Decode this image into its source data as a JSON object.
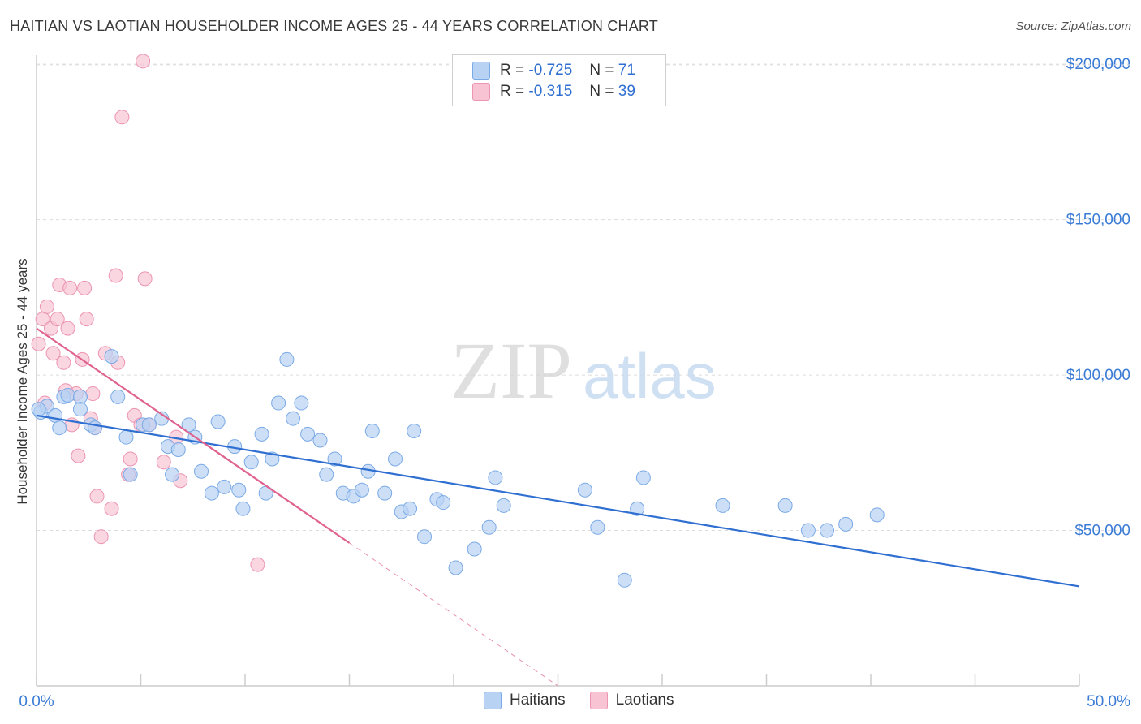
{
  "header": {
    "title": "HAITIAN VS LAOTIAN HOUSEHOLDER INCOME AGES 25 - 44 YEARS CORRELATION CHART",
    "source": "Source: ZipAtlas.com"
  },
  "legend_top": {
    "rows": [
      {
        "r_label": "R =",
        "r_value": "-0.725",
        "n_label": "N =",
        "n_value": "71"
      },
      {
        "r_label": "R =",
        "r_value": "-0.315",
        "n_label": "N =",
        "n_value": "39"
      }
    ]
  },
  "legend_bottom": {
    "haitians": "Haitians",
    "laotians": "Laotians"
  },
  "colors": {
    "haitians_fill": "#b8d2f3",
    "haitians_stroke": "#7aaae6",
    "haitians_line": "#2f6fd1",
    "laotians_fill": "#f8c4d4",
    "laotians_stroke": "#ec94b2",
    "laotians_line": "#e0628f",
    "axis_label": "#3a7bd5"
  },
  "watermark": {
    "zip": "ZIP",
    "atlas": "atlas"
  },
  "chart_data": {
    "type": "scatter",
    "title": "HAITIAN VS LAOTIAN HOUSEHOLDER INCOME AGES 25 - 44 YEARS CORRELATION CHART",
    "xlabel": "",
    "ylabel": "Householder Income Ages 25 - 44 years",
    "xlim": [
      0,
      50
    ],
    "ylim": [
      0,
      205000
    ],
    "x_tick_labels": [
      "0.0%",
      "50.0%"
    ],
    "y_ticks": [
      50000,
      100000,
      150000,
      200000
    ],
    "y_tick_labels": [
      "$50,000",
      "$100,000",
      "$150,000",
      "$200,000"
    ],
    "grid": true,
    "legend_position": "top-center",
    "series": [
      {
        "name": "Haitians",
        "r": -0.725,
        "n": 71,
        "trend": {
          "x0": 0,
          "y0": 87000,
          "x1": 50,
          "y1": 32000
        },
        "points": [
          [
            0.2,
            88000
          ],
          [
            0.5,
            90000
          ],
          [
            0.9,
            87000
          ],
          [
            1.1,
            83000
          ],
          [
            1.3,
            93000
          ],
          [
            1.5,
            93500
          ],
          [
            2.1,
            93000
          ],
          [
            2.1,
            89000
          ],
          [
            2.6,
            84000
          ],
          [
            2.8,
            83000
          ],
          [
            3.6,
            106000
          ],
          [
            3.9,
            93000
          ],
          [
            4.3,
            80000
          ],
          [
            4.5,
            68000
          ],
          [
            5.1,
            84000
          ],
          [
            5.4,
            84000
          ],
          [
            6.0,
            86000
          ],
          [
            6.3,
            77000
          ],
          [
            6.5,
            68000
          ],
          [
            6.8,
            76000
          ],
          [
            7.3,
            84000
          ],
          [
            7.6,
            80000
          ],
          [
            7.9,
            69000
          ],
          [
            8.4,
            62000
          ],
          [
            8.7,
            85000
          ],
          [
            9.0,
            64000
          ],
          [
            9.5,
            77000
          ],
          [
            9.7,
            63000
          ],
          [
            9.9,
            57000
          ],
          [
            10.3,
            72000
          ],
          [
            10.8,
            81000
          ],
          [
            11.0,
            62000
          ],
          [
            11.3,
            73000
          ],
          [
            11.6,
            91000
          ],
          [
            12.0,
            105000
          ],
          [
            12.3,
            86000
          ],
          [
            12.7,
            91000
          ],
          [
            13.0,
            81000
          ],
          [
            13.6,
            79000
          ],
          [
            13.9,
            68000
          ],
          [
            14.3,
            73000
          ],
          [
            14.7,
            62000
          ],
          [
            15.2,
            61000
          ],
          [
            15.6,
            63000
          ],
          [
            15.9,
            69000
          ],
          [
            16.1,
            82000
          ],
          [
            16.7,
            62000
          ],
          [
            17.2,
            73000
          ],
          [
            17.5,
            56000
          ],
          [
            17.9,
            57000
          ],
          [
            18.1,
            82000
          ],
          [
            18.6,
            48000
          ],
          [
            19.2,
            60000
          ],
          [
            19.5,
            59000
          ],
          [
            20.1,
            38000
          ],
          [
            21.0,
            44000
          ],
          [
            21.7,
            51000
          ],
          [
            22.0,
            67000
          ],
          [
            22.4,
            58000
          ],
          [
            26.3,
            63000
          ],
          [
            26.9,
            51000
          ],
          [
            28.2,
            34000
          ],
          [
            28.8,
            57000
          ],
          [
            29.1,
            67000
          ],
          [
            32.9,
            58000
          ],
          [
            35.9,
            58000
          ],
          [
            37.0,
            50000
          ],
          [
            37.9,
            50000
          ],
          [
            38.8,
            52000
          ],
          [
            40.3,
            55000
          ],
          [
            0.1,
            89000
          ]
        ]
      },
      {
        "name": "Laotians",
        "r": -0.315,
        "n": 39,
        "trend": {
          "x0": 0,
          "y0": 115000,
          "x1": 15,
          "y1": 46000,
          "dashed_x1": 25,
          "dashed_y1": 0
        },
        "points": [
          [
            0.1,
            110000
          ],
          [
            0.3,
            118000
          ],
          [
            0.5,
            122000
          ],
          [
            0.7,
            115000
          ],
          [
            0.8,
            107000
          ],
          [
            1.0,
            118000
          ],
          [
            1.1,
            129000
          ],
          [
            1.3,
            104000
          ],
          [
            1.5,
            115000
          ],
          [
            1.6,
            128000
          ],
          [
            1.7,
            84000
          ],
          [
            1.9,
            94000
          ],
          [
            2.0,
            74000
          ],
          [
            2.2,
            105000
          ],
          [
            2.3,
            128000
          ],
          [
            2.4,
            118000
          ],
          [
            2.6,
            86000
          ],
          [
            2.7,
            94000
          ],
          [
            2.8,
            83000
          ],
          [
            2.9,
            61000
          ],
          [
            3.1,
            48000
          ],
          [
            3.3,
            107000
          ],
          [
            3.6,
            57000
          ],
          [
            3.8,
            132000
          ],
          [
            3.9,
            104000
          ],
          [
            4.1,
            183000
          ],
          [
            4.4,
            68000
          ],
          [
            4.5,
            73000
          ],
          [
            4.7,
            87000
          ],
          [
            5.0,
            84000
          ],
          [
            5.1,
            201000
          ],
          [
            5.2,
            131000
          ],
          [
            5.4,
            84000
          ],
          [
            6.1,
            72000
          ],
          [
            6.7,
            80000
          ],
          [
            6.9,
            66000
          ],
          [
            10.6,
            39000
          ],
          [
            1.4,
            95000
          ],
          [
            0.4,
            91000
          ]
        ]
      }
    ]
  }
}
